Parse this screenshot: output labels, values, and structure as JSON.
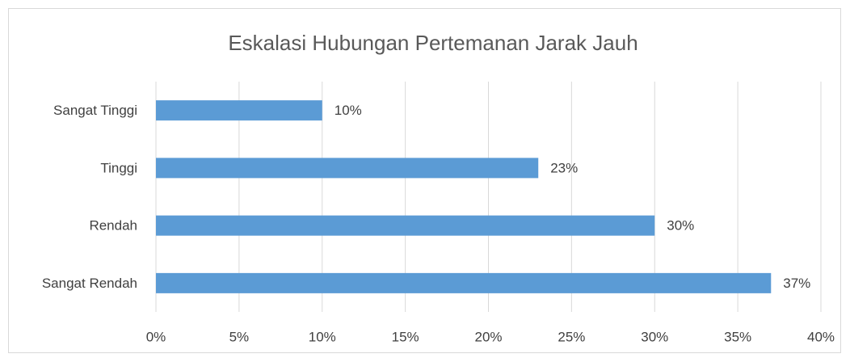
{
  "chart_data": {
    "type": "bar",
    "orientation": "horizontal",
    "title": "Eskalasi Hubungan Pertemanan Jarak Jauh",
    "categories": [
      "Sangat Tinggi",
      "Tinggi",
      "Rendah",
      "Sangat Rendah"
    ],
    "values": [
      10,
      23,
      30,
      37
    ],
    "value_labels": [
      "10%",
      "23%",
      "30%",
      "37%"
    ],
    "color": "#5b9bd5",
    "xlim": [
      0,
      40
    ],
    "xticks": [
      {
        "value": 0,
        "label": "0%"
      },
      {
        "value": 5,
        "label": "5%"
      },
      {
        "value": 10,
        "label": "10%"
      },
      {
        "value": 15,
        "label": "15%"
      },
      {
        "value": 20,
        "label": "20%"
      },
      {
        "value": 25,
        "label": "25%"
      },
      {
        "value": 30,
        "label": "30%"
      },
      {
        "value": 35,
        "label": "35%"
      },
      {
        "value": 40,
        "label": "40%"
      }
    ],
    "grid": true
  }
}
